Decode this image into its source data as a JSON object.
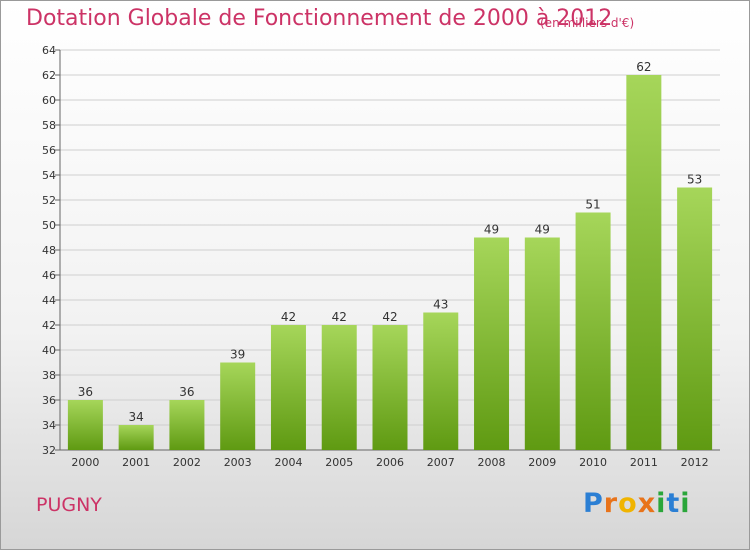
{
  "header": {
    "title": "Dotation Globale de Fonctionnement de 2000 à 2012",
    "subtitle": "(en milliers d'€)"
  },
  "footer": {
    "place": "PUGNY",
    "brand": [
      "P",
      "r",
      "o",
      "x",
      "i",
      "t",
      "i"
    ],
    "brand_colors": [
      "#2b7fd4",
      "#e8731a",
      "#f0b400",
      "#e8731a",
      "#2aa63a",
      "#2b7fd4",
      "#2aa63a"
    ]
  },
  "colors": {
    "title": "#cc3366",
    "bar_top": "#a6d65a",
    "bar_bottom": "#5f9a12",
    "grid": "#cfcfcf",
    "axis": "#666666"
  },
  "chart_data": {
    "type": "bar",
    "categories": [
      "2000",
      "2001",
      "2002",
      "2003",
      "2004",
      "2005",
      "2006",
      "2007",
      "2008",
      "2009",
      "2010",
      "2011",
      "2012"
    ],
    "values": [
      36,
      34,
      36,
      39,
      42,
      42,
      42,
      43,
      49,
      49,
      51,
      62,
      53
    ],
    "ylim": [
      32,
      64
    ],
    "yticks": [
      32,
      34,
      36,
      38,
      40,
      42,
      44,
      46,
      48,
      50,
      52,
      54,
      56,
      58,
      60,
      62,
      64
    ],
    "grid": true,
    "data_labels": true
  }
}
